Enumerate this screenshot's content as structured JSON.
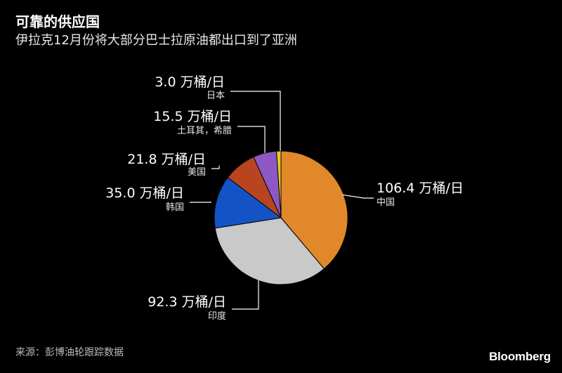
{
  "chart_data": {
    "type": "pie",
    "title": "可靠的供应国",
    "subtitle": "伊拉克12月份将大部分巴士拉原油都出口到了亚洲",
    "unit": "万桶/日",
    "slices": [
      {
        "category": "中国",
        "value": 106.4,
        "label": "106.4 万桶/日",
        "color": "#e1882a"
      },
      {
        "category": "印度",
        "value": 92.3,
        "label": "92.3 万桶/日",
        "color": "#c9c9c9"
      },
      {
        "category": "韩国",
        "value": 35.0,
        "label": "35.0 万桶/日",
        "color": "#1353c6"
      },
      {
        "category": "美国",
        "value": 21.8,
        "label": "21.8 万桶/日",
        "color": "#b8451f"
      },
      {
        "category": "土耳其，希腊",
        "value": 15.5,
        "label": "15.5 万桶/日",
        "color": "#8e58c4"
      },
      {
        "category": "日本",
        "value": 3.0,
        "label": "3.0 万桶/日",
        "color": "#e8c42a"
      }
    ]
  },
  "footer": {
    "source": "来源：彭博油轮跟踪数据",
    "brand": "Bloomberg"
  }
}
